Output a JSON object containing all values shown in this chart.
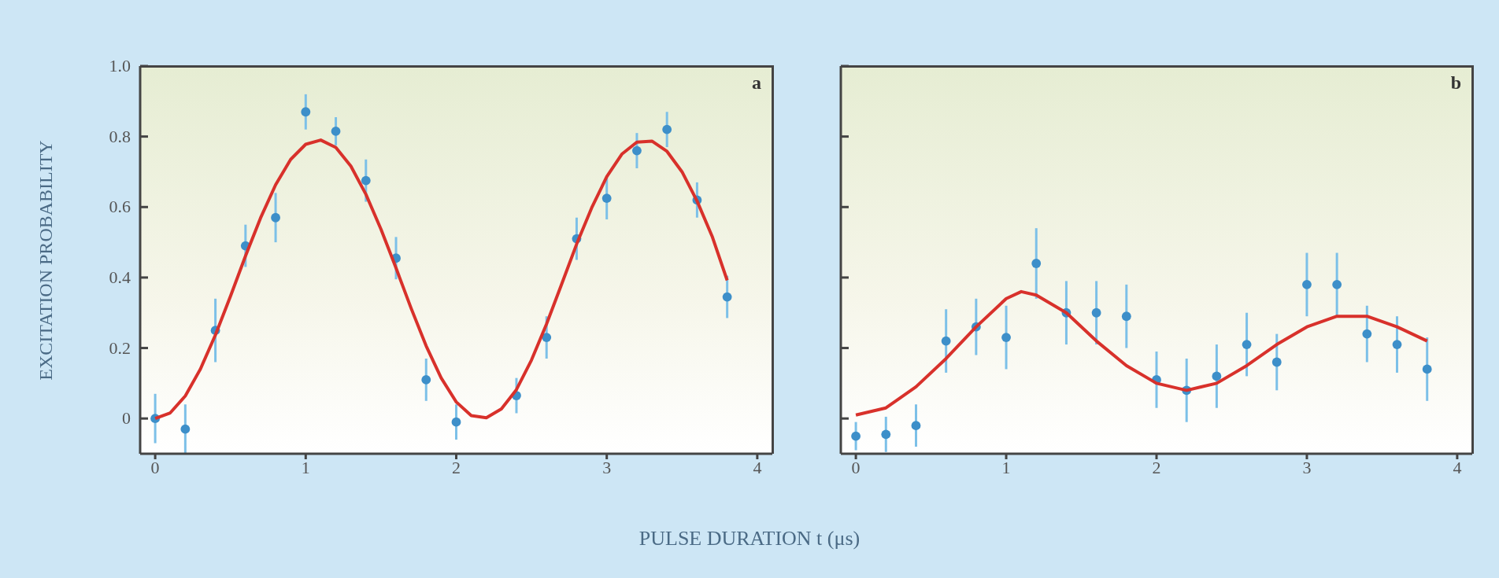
{
  "chart_data": [
    {
      "type": "scatter",
      "ylabel": "EXCITATION PROBABILITY",
      "xlabel": "PULSE DURATION t (μs)",
      "annotations": [
        "a"
      ],
      "xlim": [
        -0.1,
        4.1
      ],
      "xticks": [
        0,
        1,
        2,
        3,
        4
      ],
      "ylim": [
        -0.1,
        1.0
      ],
      "yticks": [
        0,
        0.2,
        0.4,
        0.6,
        0.8,
        {
          "value": 1,
          "label": "1.0"
        }
      ],
      "series": [
        {
          "marker": "circle",
          "color": "#3d8fc9",
          "x": [
            0,
            0.2,
            0.4,
            0.6,
            0.8,
            1.0,
            1.2,
            1.4,
            1.6,
            1.8,
            2.0,
            2.4,
            2.6,
            2.8,
            3.0,
            3.2,
            3.4,
            3.6,
            3.8
          ],
          "values": [
            0.0,
            -0.03,
            0.25,
            0.49,
            0.57,
            0.87,
            0.815,
            0.675,
            0.455,
            0.11,
            -0.01,
            0.065,
            0.23,
            0.51,
            0.625,
            0.76,
            0.82,
            0.62,
            0.345
          ],
          "errors": [
            0.07,
            0.07,
            0.09,
            0.06,
            0.07,
            0.05,
            0.04,
            0.06,
            0.06,
            0.06,
            0.05,
            0.05,
            0.06,
            0.06,
            0.06,
            0.05,
            0.05,
            0.05,
            0.06
          ]
        },
        {
          "type": "line",
          "color": "#d8312b",
          "x": [
            0,
            0.1,
            0.2,
            0.3,
            0.4,
            0.5,
            0.6,
            0.7,
            0.8,
            0.9,
            1.0,
            1.1,
            1.2,
            1.3,
            1.4,
            1.5,
            1.6,
            1.7,
            1.8,
            1.9,
            2.0,
            2.1,
            2.2,
            2.3,
            2.4,
            2.5,
            2.6,
            2.7,
            2.8,
            2.9,
            3.0,
            3.1,
            3.2,
            3.3,
            3.4,
            3.5,
            3.6,
            3.7,
            3.8
          ],
          "values": [
            0,
            0.016,
            0.064,
            0.14,
            0.237,
            0.347,
            0.461,
            0.569,
            0.663,
            0.735,
            0.778,
            0.79,
            0.769,
            0.716,
            0.636,
            0.537,
            0.427,
            0.313,
            0.206,
            0.115,
            0.047,
            0.008,
            0.002,
            0.027,
            0.082,
            0.166,
            0.268,
            0.381,
            0.495,
            0.598,
            0.686,
            0.75,
            0.784,
            0.787,
            0.758,
            0.7,
            0.617,
            0.517,
            0.392
          ]
        }
      ]
    },
    {
      "type": "scatter",
      "annotations": [
        "b"
      ],
      "xlim": [
        -0.1,
        4.1
      ],
      "xticks": [
        0,
        1,
        2,
        3,
        4
      ],
      "ylim": [
        -0.1,
        1.0
      ],
      "yticks": [
        0,
        0.2,
        0.4,
        0.6,
        0.8,
        1
      ],
      "tick_labels": "x",
      "series": [
        {
          "marker": "circle",
          "color": "#3d8fc9",
          "x": [
            0,
            0.2,
            0.4,
            0.6,
            0.8,
            1.0,
            1.2,
            1.4,
            1.6,
            1.8,
            2.0,
            2.2,
            2.4,
            2.6,
            2.8,
            3.0,
            3.2,
            3.4,
            3.6,
            3.8
          ],
          "values": [
            -0.05,
            -0.045,
            -0.02,
            0.22,
            0.26,
            0.23,
            0.44,
            0.3,
            0.3,
            0.29,
            0.11,
            0.08,
            0.12,
            0.21,
            0.16,
            0.38,
            0.38,
            0.24,
            0.21,
            0.14
          ],
          "errors": [
            0.04,
            0.05,
            0.06,
            0.09,
            0.08,
            0.09,
            0.1,
            0.09,
            0.09,
            0.09,
            0.08,
            0.09,
            0.09,
            0.09,
            0.08,
            0.09,
            0.09,
            0.08,
            0.08,
            0.09
          ]
        },
        {
          "type": "line",
          "color": "#d8312b",
          "x": [
            0,
            0.2,
            0.4,
            0.6,
            0.8,
            1.0,
            1.1,
            1.2,
            1.4,
            1.6,
            1.8,
            2.0,
            2.2,
            2.4,
            2.6,
            2.8,
            3.0,
            3.2,
            3.4,
            3.6,
            3.8
          ],
          "values": [
            0.01,
            0.03,
            0.09,
            0.17,
            0.26,
            0.34,
            0.36,
            0.35,
            0.3,
            0.22,
            0.15,
            0.1,
            0.08,
            0.1,
            0.15,
            0.21,
            0.26,
            0.29,
            0.29,
            0.26,
            0.22
          ]
        }
      ]
    }
  ]
}
